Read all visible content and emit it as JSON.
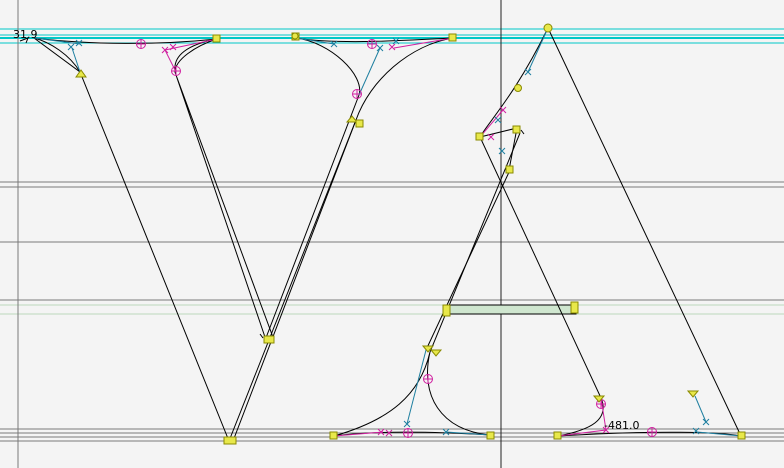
{
  "editor": {
    "glyph_pair": "VA",
    "coord_top_left": "31.9",
    "coord_bottom_right": "-481.0"
  },
  "colors": {
    "background": "#f4f4f4",
    "outline": "#000000",
    "point_fill": "#e8e84a",
    "point_stroke": "#8a8a00",
    "offcurve_magenta": "#d020a0",
    "offcurve_cyan": "#1e7fa0",
    "guide_cyan": "#00c8c8",
    "guide_gray": "#7a7a7a",
    "guide_green": "#bcd8bc",
    "selection_fill": "#cfe6cf"
  }
}
